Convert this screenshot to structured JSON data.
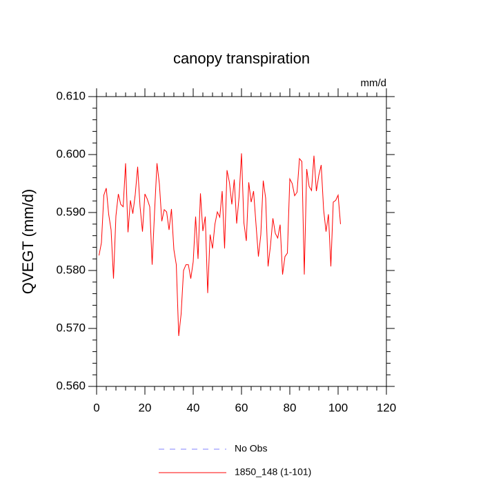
{
  "chart_data": {
    "type": "line",
    "title": "canopy transpiration",
    "units_label": "mm/d",
    "y_label": "QVEGT  (mm/d)",
    "x": [
      1,
      2,
      3,
      4,
      5,
      6,
      7,
      8,
      9,
      10,
      11,
      12,
      13,
      14,
      15,
      16,
      17,
      18,
      19,
      20,
      21,
      22,
      23,
      24,
      25,
      26,
      27,
      28,
      29,
      30,
      31,
      32,
      33,
      34,
      35,
      36,
      37,
      38,
      39,
      40,
      41,
      42,
      43,
      44,
      45,
      46,
      47,
      48,
      49,
      50,
      51,
      52,
      53,
      54,
      55,
      56,
      57,
      58,
      59,
      60,
      61,
      62,
      63,
      64,
      65,
      66,
      67,
      68,
      69,
      70,
      71,
      72,
      73,
      74,
      75,
      76,
      77,
      78,
      79,
      80,
      81,
      82,
      83,
      84,
      85,
      86,
      87,
      88,
      89,
      90,
      91,
      92,
      93,
      94,
      95,
      96,
      97,
      98,
      99,
      100,
      101
    ],
    "series": [
      {
        "name": "1850_148 (1-101)",
        "color": "#ff0000",
        "values": [
          0.5826,
          0.5848,
          0.593,
          0.5942,
          0.5897,
          0.587,
          0.5786,
          0.5894,
          0.5932,
          0.5914,
          0.591,
          0.5985,
          0.5866,
          0.5921,
          0.5898,
          0.5931,
          0.5979,
          0.591,
          0.5867,
          0.5932,
          0.5923,
          0.591,
          0.581,
          0.5901,
          0.5985,
          0.5949,
          0.5885,
          0.5905,
          0.5901,
          0.587,
          0.5906,
          0.5836,
          0.581,
          0.5687,
          0.5725,
          0.58,
          0.581,
          0.581,
          0.5786,
          0.5815,
          0.5893,
          0.582,
          0.5933,
          0.5868,
          0.5893,
          0.5761,
          0.5862,
          0.5838,
          0.588,
          0.5901,
          0.5892,
          0.5937,
          0.5838,
          0.5973,
          0.5952,
          0.5914,
          0.5957,
          0.5881,
          0.5927,
          0.6002,
          0.5882,
          0.5851,
          0.5952,
          0.5918,
          0.5937,
          0.588,
          0.5824,
          0.5862,
          0.5955,
          0.5925,
          0.5807,
          0.5843,
          0.589,
          0.5864,
          0.5856,
          0.5879,
          0.5793,
          0.5824,
          0.583,
          0.5958,
          0.595,
          0.5929,
          0.5935,
          0.5993,
          0.5988,
          0.5793,
          0.5975,
          0.5945,
          0.5938,
          0.5998,
          0.5937,
          0.5964,
          0.5982,
          0.5905,
          0.5867,
          0.5897,
          0.5807,
          0.5918,
          0.5921,
          0.593,
          0.588
        ]
      }
    ],
    "reference_legend": {
      "name": "No Obs",
      "color": "#8080ff"
    },
    "xlim": [
      0,
      120
    ],
    "xticks": [
      0,
      20,
      40,
      60,
      80,
      100,
      120
    ],
    "xminorticks": [
      4,
      8,
      12,
      16,
      24,
      28,
      32,
      36,
      44,
      48,
      52,
      56,
      64,
      68,
      72,
      76,
      84,
      88,
      92,
      96,
      104,
      108,
      112,
      116
    ],
    "ylim": [
      0.56,
      0.61
    ],
    "yticks": [
      {
        "value": 0.56,
        "label": "0.560"
      },
      {
        "value": 0.57,
        "label": "0.570"
      },
      {
        "value": 0.58,
        "label": "0.580"
      },
      {
        "value": 0.59,
        "label": "0.590"
      },
      {
        "value": 0.6,
        "label": "0.600"
      },
      {
        "value": 0.61,
        "label": "0.610"
      }
    ],
    "yminorticks": [
      0.562,
      0.564,
      0.566,
      0.568,
      0.572,
      0.574,
      0.576,
      0.578,
      0.582,
      0.584,
      0.586,
      0.588,
      0.592,
      0.594,
      0.596,
      0.598,
      0.602,
      0.604,
      0.606,
      0.608
    ]
  }
}
